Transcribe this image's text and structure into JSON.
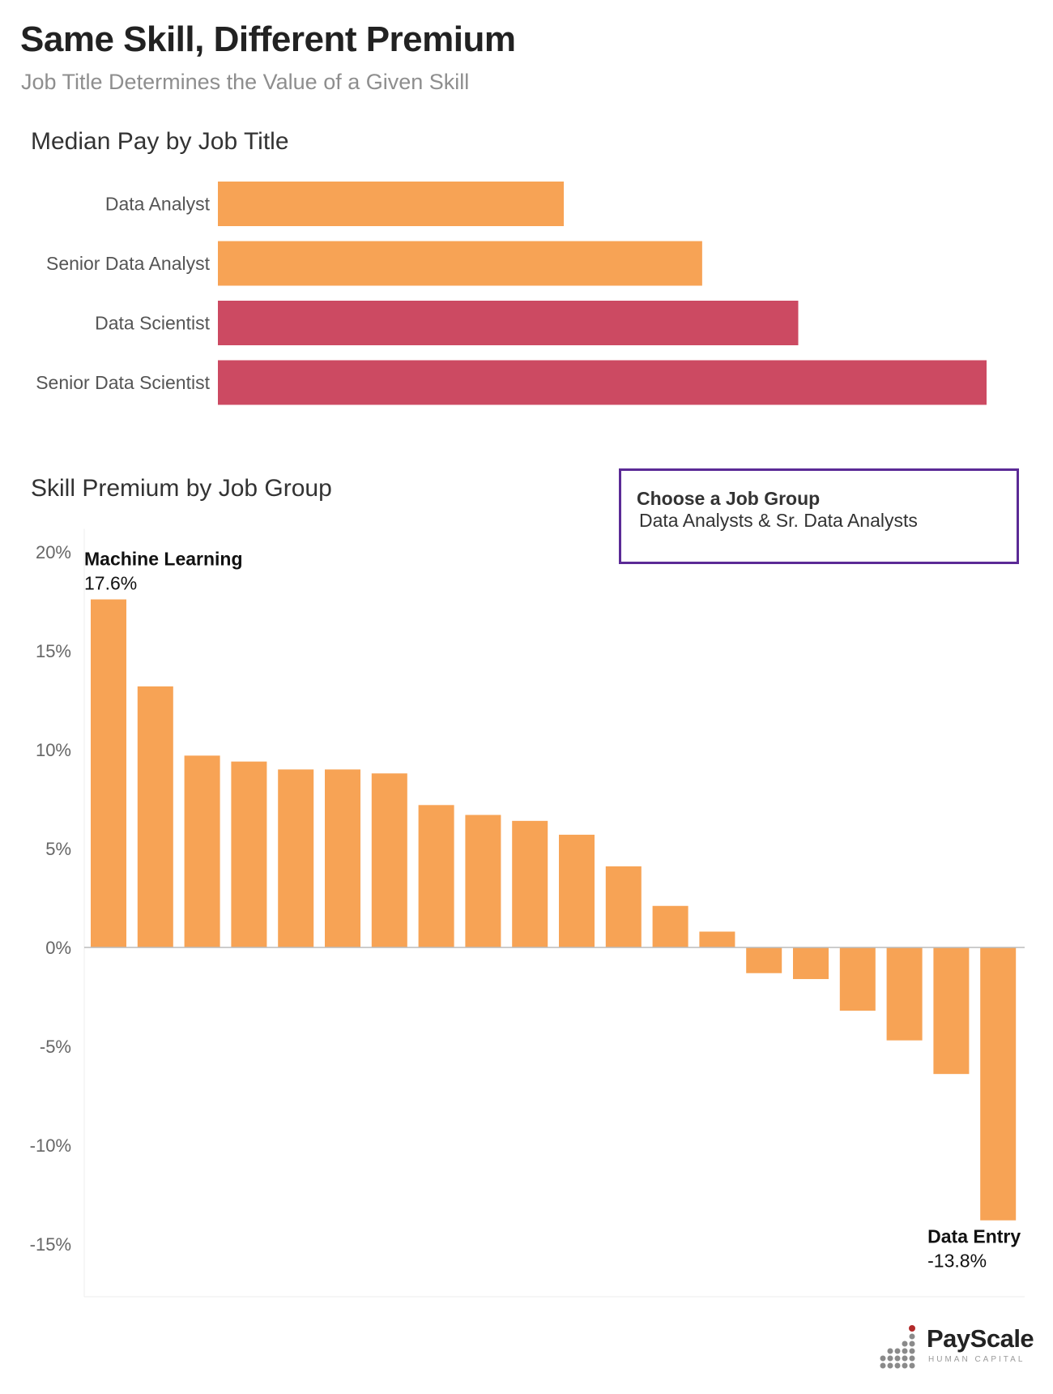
{
  "header": {
    "title": "Same Skill, Different Premium",
    "subtitle": "Job Title Determines the Value of a Given Skill"
  },
  "sections": {
    "median_pay_title": "Median Pay by Job Title",
    "skill_premium_title": "Skill Premium by Job Group"
  },
  "selector": {
    "label": "Choose a Job Group",
    "value": "Data Analysts & Sr. Data Analysts"
  },
  "logo": {
    "name": "PayScale",
    "tagline": "HUMAN CAPITAL"
  },
  "colors": {
    "orange": "#f7a355",
    "red": "#cc4a62",
    "selector_border": "#5b2a96"
  },
  "chart_data": [
    {
      "type": "bar",
      "orientation": "horizontal",
      "title": "Median Pay by Job Title",
      "categories": [
        "Data Analyst",
        "Senior Data Analyst",
        "Data Scientist",
        "Senior Data Scientist"
      ],
      "values": [
        45,
        63,
        75.5,
        100
      ],
      "bar_colors": [
        "#f7a355",
        "#f7a355",
        "#cc4a62",
        "#cc4a62"
      ],
      "note": "relative values estimated; no axis shown"
    },
    {
      "type": "bar",
      "orientation": "vertical",
      "title": "Skill Premium by Job Group",
      "ylim": [
        -17.5,
        21
      ],
      "yticks": [
        20,
        15,
        10,
        5,
        0,
        -5,
        -10,
        -15
      ],
      "ytick_labels": [
        "20%",
        "15%",
        "10%",
        "5%",
        "0%",
        "-5%",
        "-10%",
        "-15%"
      ],
      "values": [
        17.6,
        13.2,
        9.7,
        9.4,
        9.0,
        9.0,
        8.8,
        7.2,
        6.7,
        6.4,
        5.7,
        4.1,
        2.1,
        0.8,
        -1.3,
        -1.6,
        -3.2,
        -4.7,
        -6.4,
        -13.8
      ],
      "annotations": [
        {
          "index": 0,
          "label": "Machine Learning",
          "value_label": "17.6%",
          "position": "above"
        },
        {
          "index": 19,
          "label": "Data Entry",
          "value_label": "-13.8%",
          "position": "below"
        }
      ],
      "bar_color": "#f7a355",
      "grid": false
    }
  ]
}
